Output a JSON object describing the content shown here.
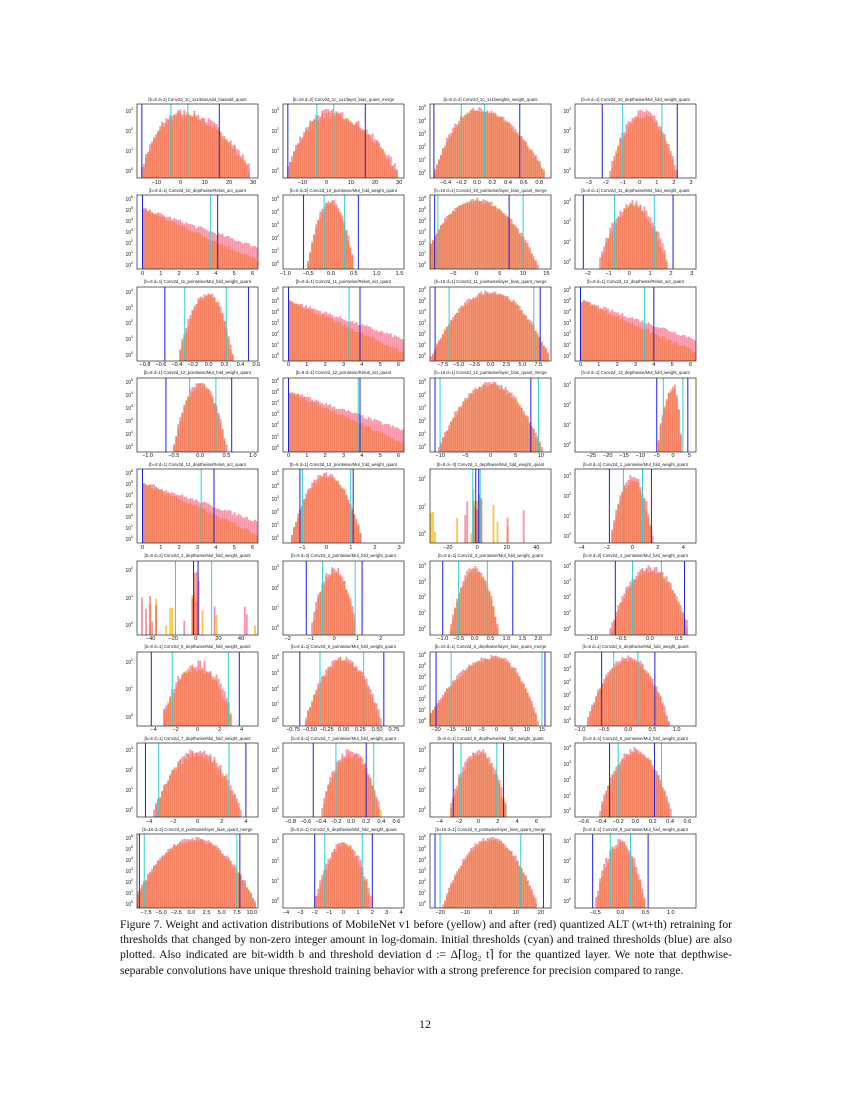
{
  "chart_data": [
    {
      "type": "histogram",
      "title": "[b=8 d=2] Conv2d_1c_1x1/BiasAdd_biasadd_quant",
      "xlim": [
        -18,
        32
      ],
      "xticks": [
        -10,
        0,
        10,
        20,
        30
      ],
      "yexp": [
        0,
        1,
        2,
        3
      ],
      "shape": "gauss",
      "mu": 0,
      "sigma": 5,
      "skew": 1.8,
      "cyan": [
        -4,
        3
      ],
      "blue": [
        -16,
        16
      ]
    },
    {
      "type": "histogram",
      "title": "[b=16 d=2] Conv2d_1c_1x1/layer_bias_quant_merge",
      "xlim": [
        -18,
        32
      ],
      "xticks": [
        -10,
        0,
        10,
        20,
        30
      ],
      "yexp": [
        0,
        1,
        2,
        3
      ],
      "shape": "gauss",
      "mu": 0,
      "sigma": 5,
      "skew": 1.8,
      "cyan": [
        -4,
        3
      ],
      "blue": [
        -16,
        16
      ]
    },
    {
      "type": "histogram",
      "title": "[b=8 d=2] Conv2d_1c_1x1/weights_weight_quant",
      "xlim": [
        -0.6,
        0.95
      ],
      "xticks": [
        -0.4,
        -0.2,
        0.0,
        0.2,
        0.4,
        0.6,
        0.8
      ],
      "yexp": [
        0,
        1,
        2,
        3,
        4,
        5
      ],
      "shape": "gauss",
      "mu": 0,
      "sigma": 0.13,
      "skew": 1.6,
      "cyan": [
        -0.2,
        0.1
      ],
      "blue": [
        -0.55,
        0.55
      ]
    },
    {
      "type": "histogram",
      "title": "[b=8 d=1] Conv2d_10_depthwise/Mul_fold_weight_quant",
      "xlim": [
        -3.8,
        3.3
      ],
      "xticks": [
        -3,
        -2,
        -1,
        0,
        1,
        2,
        3
      ],
      "yexp": [
        0,
        1,
        2,
        3
      ],
      "shape": "gauss",
      "mu": 0.2,
      "sigma": 0.6,
      "skew": 1,
      "cyan": [
        -1,
        1.3
      ],
      "blue": [
        -2.2,
        2.2
      ]
    },
    {
      "type": "histogram",
      "title": "[b=8 d=1] Conv2d_10_depthwise/Relu6_act_quant",
      "xlim": [
        -0.3,
        6.3
      ],
      "xticks": [
        0,
        1,
        2,
        3,
        4,
        5,
        6
      ],
      "yexp": [
        0,
        1,
        2,
        3,
        4,
        5,
        6
      ],
      "shape": "relu",
      "cyan": [
        0,
        3.7
      ],
      "blue": [
        0,
        4.1
      ]
    },
    {
      "type": "histogram",
      "title": "[b=8 d=2] Conv2d_10_pointwise/Mul_fold_weight_quant",
      "xlim": [
        -1.05,
        1.6
      ],
      "xticks": [
        -1.0,
        -0.5,
        0.0,
        0.5,
        1.0,
        1.5
      ],
      "yexp": [
        0,
        1,
        2,
        3,
        4,
        5
      ],
      "shape": "gauss",
      "mu": 0,
      "sigma": 0.12,
      "skew": 1,
      "cyan": [
        -0.15,
        0.3
      ],
      "blue": [
        -0.6,
        0.6
      ]
    },
    {
      "type": "histogram",
      "title": "[b=16 d=1] Conv2d_10_pointwise/layer_bias_quant_merge",
      "xlim": [
        -10,
        16
      ],
      "xticks": [
        -5,
        0,
        5,
        10,
        15
      ],
      "yexp": [
        0,
        1,
        2,
        3,
        4,
        5,
        6
      ],
      "shape": "gauss",
      "mu": 0,
      "sigma": 2.6,
      "skew": 1.1,
      "cyan": [
        -8.3,
        10
      ],
      "blue": [
        -9,
        7
      ]
    },
    {
      "type": "histogram",
      "title": "[b=8 d=1] Conv2d_11_depthwise/Mul_fold_weight_quant",
      "xlim": [
        -2.6,
        3.2
      ],
      "xticks": [
        -2,
        -1,
        0,
        1,
        2,
        3
      ],
      "yexp": [
        0,
        1,
        2,
        3
      ],
      "shape": "gauss",
      "mu": 0.2,
      "sigma": 0.5,
      "skew": 1,
      "cyan": [
        -0.7,
        1.2
      ],
      "blue": [
        -2.2,
        2.1
      ]
    },
    {
      "type": "histogram",
      "title": "[b=8 d=1] Conv2d_11_pointwise/Mul_fold_weight_quant",
      "xlim": [
        -0.9,
        0.62
      ],
      "xticks": [
        -0.8,
        -0.6,
        -0.4,
        -0.2,
        0.0,
        0.2,
        0.4,
        0.6
      ],
      "yexp": [
        0,
        1,
        2,
        3,
        4
      ],
      "shape": "gauss",
      "mu": 0,
      "sigma": 0.1,
      "skew": 0.8,
      "cyan": [
        -0.3,
        0.22
      ],
      "blue": [
        -0.55,
        0.5
      ]
    },
    {
      "type": "histogram",
      "title": "[b=8 d=1] Conv2d_11_pointwise/Relu6_act_quant",
      "xlim": [
        -0.3,
        6.3
      ],
      "xticks": [
        0,
        1,
        2,
        3,
        4,
        5,
        6
      ],
      "yexp": [
        0,
        1,
        2,
        3,
        4,
        5,
        6
      ],
      "shape": "relu",
      "cyan": [
        0,
        3.3
      ],
      "blue": [
        0,
        3.9
      ]
    },
    {
      "type": "histogram",
      "title": "[b=16 d=1] Conv2d_11_pointwise/layer_bias_quant_merge",
      "xlim": [
        -9.5,
        9.5
      ],
      "xticks": [
        -7.5,
        -5.0,
        -2.5,
        0.0,
        2.5,
        5.0,
        7.5
      ],
      "yexp": [
        0,
        1,
        2,
        3,
        4,
        5,
        6
      ],
      "shape": "gauss",
      "mu": 0,
      "sigma": 2,
      "skew": 1,
      "cyan": [
        -6.5,
        6.8
      ],
      "blue": [
        -8.7,
        7.8
      ]
    },
    {
      "type": "histogram",
      "title": "[b=8 d=1] Conv2d_12_depthwise/Relu6_act_quant",
      "xlim": [
        -0.3,
        6.3
      ],
      "xticks": [
        0,
        1,
        2,
        3,
        4,
        5,
        6
      ],
      "yexp": [
        0,
        1,
        2,
        3,
        4,
        5,
        6
      ],
      "shape": "relu",
      "cyan": [
        0,
        3.5
      ],
      "blue": [
        0,
        4
      ]
    },
    {
      "type": "histogram",
      "title": "[b=8 d=1] Conv2d_12_pointwise/Mul_fold_weight_quant",
      "xlim": [
        -1.2,
        1.1
      ],
      "xticks": [
        -1.0,
        -0.5,
        0.0,
        0.5,
        1.0
      ],
      "yexp": [
        0,
        1,
        2,
        3,
        4,
        5
      ],
      "shape": "gauss",
      "mu": 0,
      "sigma": 0.12,
      "skew": 1,
      "cyan": [
        -0.2,
        0.3
      ],
      "blue": [
        -0.65,
        0.6
      ]
    },
    {
      "type": "histogram",
      "title": "[b=8 d=1] Conv2d_12_pointwise/Relu6_act_quant",
      "xlim": [
        -0.3,
        6.3
      ],
      "xticks": [
        0,
        1,
        2,
        3,
        4,
        5,
        6
      ],
      "yexp": [
        0,
        1,
        2,
        3,
        4,
        5,
        6
      ],
      "shape": "relu",
      "cyan": [
        0,
        3.8
      ],
      "blue": [
        0,
        3.9
      ]
    },
    {
      "type": "histogram",
      "title": "[b=16 d=1] Conv2d_12_pointwise/layer_bias_quant_merge",
      "xlim": [
        -12,
        12
      ],
      "xticks": [
        -10,
        -5,
        0,
        5,
        10
      ],
      "yexp": [
        0,
        1,
        2,
        3,
        4,
        5
      ],
      "shape": "gauss",
      "mu": 0,
      "sigma": 2.4,
      "skew": 1,
      "cyan": [
        -10,
        9.5
      ],
      "blue": [
        -11,
        8
      ]
    },
    {
      "type": "histogram",
      "title": "[b=8 d=1] Conv2d_13_depthwise/Mul_fold_weight_quant",
      "xlim": [
        -30,
        7
      ],
      "xticks": [
        -25,
        -20,
        -15,
        -10,
        -5,
        0,
        5
      ],
      "yexp": [
        0,
        1,
        2,
        3
      ],
      "shape": "gauss",
      "mu": 0.5,
      "sigma": 1.6,
      "skew": 0.4,
      "cyan": [
        -3,
        3
      ],
      "blue": [
        -5,
        4.5
      ]
    },
    {
      "type": "histogram",
      "title": "[b=8 d=1] Conv2d_13_depthwise/Relu6_act_quant",
      "xlim": [
        -0.3,
        6.3
      ],
      "xticks": [
        0,
        1,
        2,
        3,
        4,
        5,
        6
      ],
      "yexp": [
        0,
        1,
        2,
        3,
        4,
        5,
        6
      ],
      "shape": "relu",
      "cyan": [
        0,
        3.2
      ],
      "blue": [
        0,
        3.9
      ]
    },
    {
      "type": "histogram",
      "title": "[b=8 d=1] Conv2d_13_pointwise/Mul_fold_weight_quant",
      "xlim": [
        -1.8,
        3.2
      ],
      "xticks": [
        -1,
        0,
        1,
        2,
        3
      ],
      "yexp": [
        0,
        1,
        2,
        3,
        4,
        5
      ],
      "shape": "gauss",
      "mu": 0,
      "sigma": 0.35,
      "skew": 1,
      "cyan": [
        -1,
        1
      ],
      "blue": [
        -1.1,
        1.1
      ]
    },
    {
      "type": "histogram",
      "title": "[b=8 d=-3] Conv2d_1_depthwise/Mul_fold_weight_quant",
      "xlim": [
        -32,
        50
      ],
      "xticks": [
        -20,
        0,
        20,
        40
      ],
      "yexp": [
        0,
        1,
        2
      ],
      "shape": "sparse",
      "mu": 0,
      "sigma": 5,
      "skew": 1,
      "cyan": [
        -3,
        2
      ],
      "blue": [
        -1,
        1
      ]
    },
    {
      "type": "histogram",
      "title": "[b=8 d=1] Conv2d_1_pointwise/Mul_fold_weight_quant",
      "xlim": [
        -4.5,
        5
      ],
      "xticks": [
        -4,
        -2,
        0,
        2,
        4
      ],
      "yexp": [
        0,
        1,
        2,
        3
      ],
      "shape": "gauss",
      "mu": 0,
      "sigma": 0.5,
      "skew": 1,
      "cyan": [
        -0.7,
        0.8
      ],
      "blue": [
        -1.8,
        1.5
      ]
    },
    {
      "type": "histogram",
      "title": "[b=8 d=2] Conv2d_2_depthwise/Mul_fold_weight_quant",
      "xlim": [
        -52,
        55
      ],
      "xticks": [
        -40,
        -20,
        0,
        20,
        40
      ],
      "yexp": [
        0,
        1,
        2
      ],
      "shape": "sparse",
      "mu": 0,
      "sigma": 6,
      "skew": 1,
      "cyan": [
        -18,
        14
      ],
      "blue": [
        -2,
        2
      ]
    },
    {
      "type": "histogram",
      "title": "[b=8 d=2] Conv2d_2_pointwise/Mul_fold_weight_quant",
      "xlim": [
        -2.2,
        3
      ],
      "xticks": [
        -2,
        -1,
        0,
        1,
        2
      ],
      "yexp": [
        0,
        1,
        2,
        3
      ],
      "shape": "gauss",
      "mu": 0,
      "sigma": 0.3,
      "skew": 1,
      "cyan": [
        -0.5,
        0.9
      ],
      "blue": [
        -1.2,
        1.2
      ]
    },
    {
      "type": "histogram",
      "title": "[b=8 d=1] Conv2d_3_pointwise/Mul_fold_weight_quant",
      "xlim": [
        -1.4,
        2.4
      ],
      "xticks": [
        -1.0,
        -0.5,
        0.0,
        0.5,
        1.0,
        1.5,
        2.0
      ],
      "yexp": [
        0,
        1,
        2,
        3,
        4
      ],
      "shape": "gauss",
      "mu": 0,
      "sigma": 0.2,
      "skew": 1,
      "cyan": [
        -0.5,
        0.4
      ],
      "blue": [
        -1.0,
        1.2
      ]
    },
    {
      "type": "histogram",
      "title": "[b=8 d=2] Conv2d_4_pointwise/Mul_fold_weight_quant",
      "xlim": [
        -1.3,
        0.8
      ],
      "xticks": [
        -1.0,
        -0.5,
        0.0,
        0.5
      ],
      "yexp": [
        0,
        1,
        2,
        3,
        4
      ],
      "shape": "gauss",
      "mu": 0,
      "sigma": 0.18,
      "skew": 1,
      "cyan": [
        -0.3,
        0.2
      ],
      "blue": [
        -0.6,
        0.6
      ]
    },
    {
      "type": "histogram",
      "title": "[b=8 d=1] Conv2d_5_depthwise/Mul_fold_weight_quant",
      "xlim": [
        -5.5,
        5.5
      ],
      "xticks": [
        -4,
        -2,
        0,
        2,
        4
      ],
      "yexp": [
        0,
        1,
        2
      ],
      "shape": "gauss",
      "mu": 0,
      "sigma": 1.2,
      "skew": 1,
      "cyan": [
        -2.3,
        2.8
      ],
      "blue": [
        -4.2,
        3.8
      ]
    },
    {
      "type": "histogram",
      "title": "[b=8 d=1] Conv2d_5_pointwise/Mul_fold_weight_quant",
      "xlim": [
        -0.9,
        0.9
      ],
      "xticks": [
        -0.75,
        -0.5,
        -0.25,
        0.0,
        0.25,
        0.5,
        0.75
      ],
      "yexp": [
        0,
        1,
        2,
        3,
        4
      ],
      "shape": "gauss",
      "mu": 0,
      "sigma": 0.15,
      "skew": 1,
      "cyan": [
        -0.35,
        0.3
      ],
      "blue": [
        -0.65,
        0.6
      ]
    },
    {
      "type": "histogram",
      "title": "[b=16 d=1] Conv2d_6_depthwise/layer_bias_quant_merge",
      "xlim": [
        -22,
        18
      ],
      "xticks": [
        -20,
        -15,
        -10,
        -5,
        0,
        5,
        10,
        15
      ],
      "yexp": [
        0,
        1,
        2,
        3,
        4,
        5,
        6
      ],
      "shape": "gauss",
      "mu": 0,
      "sigma": 5,
      "skew": 0.6,
      "cyan": [
        -15,
        15
      ],
      "blue": [
        -20,
        16
      ]
    },
    {
      "type": "histogram",
      "title": "[b=8 d=1] Conv2d_6_depthwise/Mul_fold_weight_quant",
      "xlim": [
        -1.1,
        1.4
      ],
      "xticks": [
        -1.0,
        -0.5,
        0.0,
        0.5,
        1.0
      ],
      "yexp": [
        0,
        1,
        2,
        3,
        4,
        5
      ],
      "shape": "gauss",
      "mu": 0,
      "sigma": 0.2,
      "skew": 1,
      "cyan": [
        -0.3,
        0.2
      ],
      "blue": [
        -0.55,
        0.55
      ]
    },
    {
      "type": "histogram",
      "title": "[b=8 d=1] Conv2d_7_depthwise/Mul_fold_weight_quant",
      "xlim": [
        -5,
        5
      ],
      "xticks": [
        -4,
        -2,
        0,
        2,
        4
      ],
      "yexp": [
        0,
        1,
        2,
        3
      ],
      "shape": "gauss",
      "mu": 0,
      "sigma": 1.1,
      "skew": 1,
      "cyan": [
        -3.2,
        2.6
      ],
      "blue": [
        -4.3,
        4
      ]
    },
    {
      "type": "histogram",
      "title": "[b=8 d=1] Conv2d_7_pointwise/Mul_fold_weight_quant",
      "xlim": [
        -0.9,
        0.7
      ],
      "xticks": [
        -0.8,
        -0.6,
        -0.4,
        -0.2,
        0.0,
        0.2,
        0.4,
        0.6
      ],
      "yexp": [
        0,
        1,
        2,
        3
      ],
      "shape": "gauss",
      "mu": 0,
      "sigma": 0.12,
      "skew": 1,
      "cyan": [
        -0.2,
        0.3
      ],
      "blue": [
        -0.5,
        0.2
      ]
    },
    {
      "type": "histogram",
      "title": "[b=8 d=1] Conv2d_8_depthwise/Mul_fold_weight_quant",
      "xlim": [
        -5,
        7.5
      ],
      "xticks": [
        -4,
        -2,
        0,
        2,
        4,
        6
      ],
      "yexp": [
        0,
        1,
        2,
        3
      ],
      "shape": "gauss",
      "mu": 0,
      "sigma": 0.9,
      "skew": 1,
      "cyan": [
        -1.8,
        1.9
      ],
      "blue": [
        -2.6,
        2.6
      ]
    },
    {
      "type": "histogram",
      "title": "[b=8 d=1] Conv2d_8_pointwise/Mul_fold_weight_quant",
      "xlim": [
        -0.7,
        0.7
      ],
      "xticks": [
        -0.6,
        -0.4,
        -0.2,
        0.0,
        0.2,
        0.4,
        0.6
      ],
      "yexp": [
        0,
        1,
        2,
        3,
        4
      ],
      "shape": "gauss",
      "mu": 0,
      "sigma": 0.11,
      "skew": 1,
      "cyan": [
        -0.2,
        0.3
      ],
      "blue": [
        -0.3,
        0.22
      ]
    },
    {
      "type": "histogram",
      "title": "[b=16 d=2] Conv2d_8_pointwise/layer_bias_quant_merge",
      "xlim": [
        -9,
        11
      ],
      "xticks": [
        -7.5,
        -5.0,
        -2.5,
        0.0,
        2.5,
        5.0,
        7.5,
        10.0
      ],
      "yexp": [
        0,
        1,
        2,
        3,
        4,
        5,
        6
      ],
      "shape": "gauss",
      "mu": 0.5,
      "sigma": 2.2,
      "skew": 1,
      "cyan": [
        -7.8,
        7.5
      ],
      "blue": [
        -8.6,
        8
      ]
    },
    {
      "type": "histogram",
      "title": "[b=8 d=1] Conv2d_9_depthwise/Mul_fold_weight_quant",
      "xlim": [
        -4.2,
        4.2
      ],
      "xticks": [
        -4,
        -3,
        -2,
        -1,
        0,
        1,
        2,
        3,
        4
      ],
      "yexp": [
        0,
        1,
        2,
        3
      ],
      "shape": "gauss",
      "mu": 0,
      "sigma": 0.6,
      "skew": 1,
      "cyan": [
        -1.3,
        1.3
      ],
      "blue": [
        -2,
        2
      ]
    },
    {
      "type": "histogram",
      "title": "[b=16 d=1] Conv2d_9_pointwise/layer_bias_quant_merge",
      "xlim": [
        -24,
        24
      ],
      "xticks": [
        -20,
        -10,
        0,
        10,
        20
      ],
      "yexp": [
        0,
        1,
        2,
        3,
        4,
        5,
        6
      ],
      "shape": "gauss",
      "mu": 0,
      "sigma": 4,
      "skew": 1,
      "cyan": [
        -20,
        12
      ],
      "blue": [
        -22,
        21
      ]
    },
    {
      "type": "histogram",
      "title": "[b=8 d=1] Conv2d_9_pointwise/Mul_fold_weight_quant",
      "xlim": [
        -0.9,
        1.5
      ],
      "xticks": [
        -0.5,
        0.0,
        0.5,
        1.0
      ],
      "yexp": [
        0,
        1,
        2,
        3
      ],
      "shape": "gauss",
      "mu": 0,
      "sigma": 0.15,
      "skew": 1,
      "cyan": [
        -0.2,
        0.2
      ],
      "blue": [
        -0.55,
        0.55
      ]
    }
  ],
  "colors": {
    "before": "#f2c230",
    "after": "#f0506e",
    "initial_threshold": "#30d0d0",
    "trained_threshold": "#2020d8"
  },
  "caption": "Figure 7. Weight and activation distributions of MobileNet v1 before (yellow) and after (red) quantized ALT (wt+th) retraining for thresholds that changed by non-zero integer amount in log-domain. Initial thresholds (cyan) and trained thresholds (blue) are also plotted. Also indicated are bit-width b and threshold deviation d := Δ⌈log₂ t⌉ for the quantized layer. We note that depthwise-separable convolutions have unique threshold training behavior with a strong preference for precision compared to range.",
  "page_number": "12"
}
